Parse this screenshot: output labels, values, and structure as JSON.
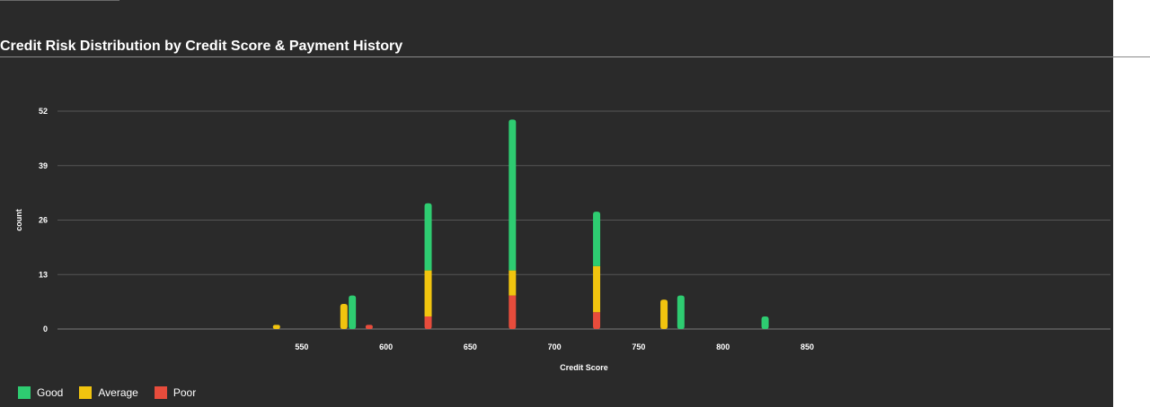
{
  "title": "Credit Risk Distribution by Credit Score & Payment History",
  "colors": {
    "Good": "#2ecc71",
    "Average": "#f1c40f",
    "Poor": "#e74c3c",
    "background": "#2a2a2a",
    "grid": "#555555"
  },
  "chart_data": {
    "type": "bar",
    "stacked": true,
    "title": "Credit Risk Distribution by Credit Score & Payment History",
    "xlabel": "Credit Score",
    "ylabel": "count",
    "xlim": [
      405,
      1030
    ],
    "ylim": [
      0,
      52
    ],
    "xticks": [
      550,
      600,
      650,
      700,
      750,
      800,
      850
    ],
    "yticks": [
      0,
      13,
      26,
      39,
      52
    ],
    "grid": true,
    "legend_position": "bottom-left",
    "series": [
      {
        "name": "Good",
        "points": [
          {
            "x": 580,
            "y": 8
          },
          {
            "x": 625,
            "y": 16
          },
          {
            "x": 675,
            "y": 36
          },
          {
            "x": 725,
            "y": 13
          },
          {
            "x": 775,
            "y": 8
          },
          {
            "x": 825,
            "y": 3
          }
        ]
      },
      {
        "name": "Average",
        "points": [
          {
            "x": 535,
            "y": 1
          },
          {
            "x": 575,
            "y": 6
          },
          {
            "x": 625,
            "y": 11
          },
          {
            "x": 675,
            "y": 6
          },
          {
            "x": 725,
            "y": 11
          },
          {
            "x": 765,
            "y": 7
          }
        ]
      },
      {
        "name": "Poor",
        "points": [
          {
            "x": 590,
            "y": 1
          },
          {
            "x": 625,
            "y": 3
          },
          {
            "x": 675,
            "y": 8
          },
          {
            "x": 725,
            "y": 4
          }
        ]
      }
    ]
  },
  "legend": [
    {
      "label": "Good",
      "color": "#2ecc71"
    },
    {
      "label": "Average",
      "color": "#f1c40f"
    },
    {
      "label": "Poor",
      "color": "#e74c3c"
    }
  ]
}
